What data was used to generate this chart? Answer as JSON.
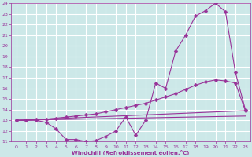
{
  "background_color": "#cce8e8",
  "grid_color": "#ffffff",
  "line_color": "#993399",
  "xlabel": "Windchill (Refroidissement éolien,°C)",
  "ylabel_ticks": [
    11,
    12,
    13,
    14,
    15,
    16,
    17,
    18,
    19,
    20,
    21,
    22,
    23,
    24
  ],
  "xlabel_ticks": [
    0,
    1,
    2,
    3,
    4,
    5,
    6,
    7,
    8,
    9,
    10,
    11,
    12,
    13,
    14,
    15,
    16,
    17,
    18,
    19,
    20,
    21,
    22,
    23
  ],
  "ylim": [
    11,
    24
  ],
  "xlim": [
    -0.5,
    23.5
  ],
  "line1_x": [
    0,
    1,
    2,
    3,
    4,
    5,
    6,
    7,
    8,
    9,
    10,
    11,
    12,
    13,
    14,
    15,
    16,
    17,
    18,
    19,
    20,
    21,
    22,
    23
  ],
  "line1_y": [
    13.0,
    13.0,
    13.0,
    12.8,
    12.2,
    11.2,
    11.2,
    11.0,
    11.1,
    11.5,
    12.0,
    13.3,
    11.6,
    13.0,
    16.5,
    16.0,
    19.5,
    21.0,
    22.8,
    23.3,
    24.0,
    23.2,
    17.5,
    14.0
  ],
  "line2_x": [
    0,
    1,
    2,
    3,
    4,
    5,
    6,
    7,
    8,
    9,
    10,
    11,
    12,
    13,
    14,
    15,
    16,
    17,
    18,
    19,
    20,
    21,
    22,
    23
  ],
  "line2_y": [
    13.0,
    13.0,
    13.1,
    13.1,
    13.2,
    13.3,
    13.4,
    13.5,
    13.6,
    13.8,
    14.0,
    14.2,
    14.4,
    14.6,
    14.9,
    15.2,
    15.5,
    15.9,
    16.3,
    16.6,
    16.8,
    16.7,
    16.5,
    13.9
  ],
  "line3_x": [
    0,
    23
  ],
  "line3_y": [
    13.0,
    13.9
  ],
  "line4_x": [
    0,
    23
  ],
  "line4_y": [
    13.0,
    13.4
  ]
}
